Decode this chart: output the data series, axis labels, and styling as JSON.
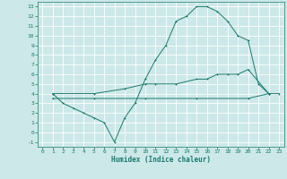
{
  "xlabel": "Humidex (Indice chaleur)",
  "bg_color": "#cde8e8",
  "grid_color": "#ffffff",
  "line_color": "#1a7a6e",
  "xlim": [
    -0.5,
    23.5
  ],
  "ylim": [
    -1.5,
    13.5
  ],
  "xticks": [
    0,
    1,
    2,
    3,
    4,
    5,
    6,
    7,
    8,
    9,
    10,
    11,
    12,
    13,
    14,
    15,
    16,
    17,
    18,
    19,
    20,
    21,
    22,
    23
  ],
  "yticks": [
    -1,
    0,
    1,
    2,
    3,
    4,
    5,
    6,
    7,
    8,
    9,
    10,
    11,
    12,
    13
  ],
  "line1_x": [
    1,
    2,
    3,
    4,
    5,
    6,
    7,
    8,
    9,
    10,
    11,
    12,
    13,
    14,
    15,
    16,
    17,
    18,
    19,
    20,
    21,
    22
  ],
  "line1_y": [
    4.0,
    3.0,
    2.5,
    2.0,
    1.5,
    1.0,
    -1.0,
    1.5,
    3.0,
    5.5,
    7.5,
    9.0,
    11.5,
    12.0,
    13.0,
    13.0,
    12.5,
    11.5,
    10.0,
    9.5,
    5.0,
    4.0
  ],
  "line2_x": [
    1,
    5,
    8,
    10,
    11,
    13,
    15,
    16,
    17,
    18,
    19,
    20,
    22
  ],
  "line2_y": [
    4.0,
    4.0,
    4.5,
    5.0,
    5.0,
    5.0,
    5.5,
    5.5,
    6.0,
    6.0,
    6.0,
    6.5,
    4.0
  ],
  "line3_x": [
    1,
    5,
    10,
    15,
    20,
    22,
    23
  ],
  "line3_y": [
    3.5,
    3.5,
    3.5,
    3.5,
    3.5,
    4.0,
    4.0
  ],
  "tick_fontsize": 4.5,
  "xlabel_fontsize": 5.5,
  "lw": 0.7,
  "ms": 2.0
}
